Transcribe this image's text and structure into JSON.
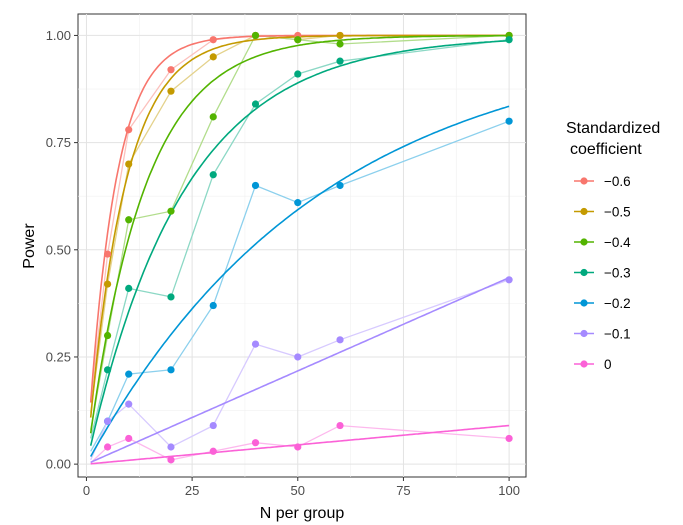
{
  "chart_data": {
    "type": "line",
    "title": "",
    "xlabel": "N per group",
    "ylabel": "Power",
    "xlim": [
      -2,
      104
    ],
    "ylim": [
      -0.03,
      1.05
    ],
    "x_ticks": [
      0,
      25,
      50,
      75,
      100
    ],
    "x_tick_labels": [
      "0",
      "25",
      "50",
      "75",
      "100"
    ],
    "y_ticks": [
      0,
      0.25,
      0.5,
      0.75,
      1.0
    ],
    "y_tick_labels": [
      "0.00",
      "0.25",
      "0.50",
      "0.75",
      "1.00"
    ],
    "grid": true,
    "legend": {
      "title_lines": [
        "Standardized",
        "coefficient"
      ],
      "placement": "right"
    },
    "x": [
      1,
      5,
      10,
      20,
      30,
      40,
      50,
      60,
      100
    ],
    "series": [
      {
        "name": "−0.6",
        "color": "#F8766D",
        "values": [
          0.15,
          0.49,
          0.78,
          0.92,
          0.99,
          1.0,
          1.0,
          1.0,
          1.0
        ],
        "fit_rate": 0.155,
        "fit_form": "exp"
      },
      {
        "name": "−0.5",
        "color": "#C49A00",
        "values": [
          0.12,
          0.42,
          0.7,
          0.87,
          0.95,
          1.0,
          0.99,
          1.0,
          1.0
        ],
        "fit_rate": 0.115,
        "fit_form": "exp"
      },
      {
        "name": "−0.4",
        "color": "#53B400",
        "values": [
          0.08,
          0.3,
          0.57,
          0.59,
          0.81,
          1.0,
          0.99,
          0.98,
          1.0
        ],
        "fit_rate": 0.075,
        "fit_form": "exp"
      },
      {
        "name": "−0.3",
        "color": "#00A97E",
        "values": [
          0.06,
          0.22,
          0.41,
          0.39,
          0.675,
          0.84,
          0.91,
          0.94,
          0.99
        ],
        "fit_rate": 0.044,
        "fit_form": "exp"
      },
      {
        "name": "−0.2",
        "color": "#0096D6",
        "values": [
          0.03,
          0.1,
          0.21,
          0.22,
          0.37,
          0.65,
          0.61,
          0.65,
          0.8
        ],
        "fit_rate": 0.018,
        "fit_form": "exp"
      },
      {
        "name": "−0.1",
        "color": "#A58AFF",
        "values": [
          0.01,
          0.1,
          0.14,
          0.04,
          0.09,
          0.28,
          0.25,
          0.29,
          0.43
        ],
        "fit_slope": 0.00435,
        "fit_form": "linear"
      },
      {
        "name": "0",
        "color": "#FB61D7",
        "values": [
          0.003,
          0.04,
          0.06,
          0.01,
          0.03,
          0.05,
          0.04,
          0.09,
          0.06
        ],
        "fit_slope": 0.0009,
        "fit_form": "linear"
      }
    ]
  }
}
